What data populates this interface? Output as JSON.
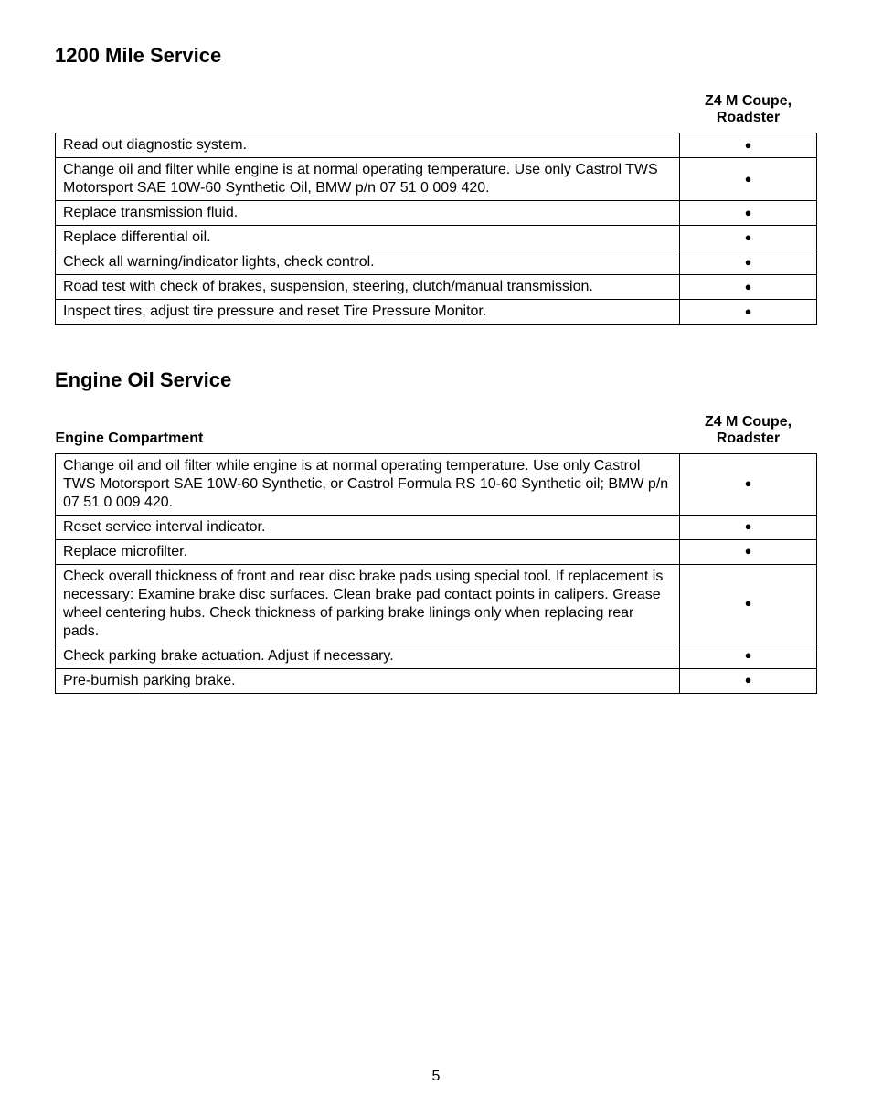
{
  "page_number": "5",
  "section1": {
    "title": "1200 Mile Service",
    "header_col": "Z4 M Coupe,\nRoadster",
    "rows": [
      {
        "item": "Read out diagnostic system.",
        "mark": "●"
      },
      {
        "item": "Change oil and filter while engine is at normal operating temperature. Use only Castrol TWS Motorsport SAE 10W-60 Synthetic Oil, BMW p/n 07 51 0 009 420.",
        "mark": "●"
      },
      {
        "item": "Replace transmission fluid.",
        "mark": "●"
      },
      {
        "item": "Replace differential oil.",
        "mark": "●"
      },
      {
        "item": "Check all warning/indicator lights, check control.",
        "mark": "●"
      },
      {
        "item": "Road test with check of brakes, suspension, steering, clutch/manual transmission.",
        "mark": "●"
      },
      {
        "item": "Inspect tires, adjust tire pressure and reset Tire Pressure Monitor.",
        "mark": "●"
      }
    ]
  },
  "section2": {
    "title": "Engine Oil Service",
    "subheader_left": "Engine Compartment",
    "header_col": "Z4 M Coupe,\nRoadster",
    "rows": [
      {
        "item": "Change oil and oil filter while engine is at normal operating temperature. Use only Castrol TWS Motorsport SAE 10W-60 Synthetic, or Castrol Formula RS 10-60 Synthetic oil; BMW p/n 07 51 0 009 420.",
        "mark": "●"
      },
      {
        "item": "Reset service interval indicator.",
        "mark": "●"
      },
      {
        "item": "Replace microfilter.",
        "mark": "●"
      },
      {
        "item": "Check overall thickness of front and rear disc brake pads using special tool. If replacement is necessary: Examine brake disc surfaces. Clean brake pad contact points in calipers. Grease wheel centering hubs. Check thickness of parking brake linings only when replacing rear pads.",
        "mark": "●"
      },
      {
        "item": "Check parking brake actuation. Adjust if necessary.",
        "mark": "●"
      },
      {
        "item": "Pre-burnish parking brake.",
        "mark": "●"
      }
    ]
  },
  "colors": {
    "background": "#ffffff",
    "text": "#000000",
    "border": "#000000"
  }
}
